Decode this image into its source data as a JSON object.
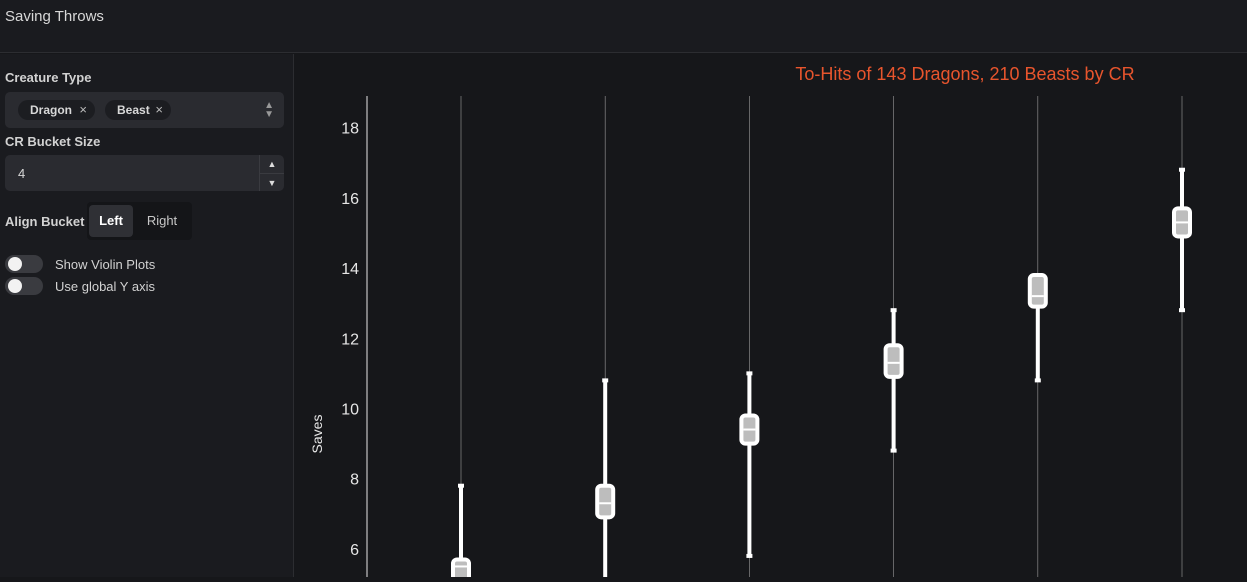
{
  "header": {
    "title": "Saving Throws"
  },
  "sidebar": {
    "creature_type_label": "Creature Type",
    "creature_types": [
      "Dragon",
      "Beast"
    ],
    "remove_glyph": "×",
    "bucket_size_label": "CR Bucket Size",
    "bucket_size_value": "4",
    "align_label": "Align Bucket",
    "align_options": [
      "Left",
      "Right"
    ],
    "align_selected": "Left",
    "toggles": [
      {
        "label": "Show Violin Plots",
        "on": false
      },
      {
        "label": "Use global Y axis",
        "on": false
      }
    ]
  },
  "colors": {
    "title": "#e8552d",
    "box_fill": "#bdbdbd",
    "whisker": "#ffffff"
  },
  "chart_data": {
    "type": "box",
    "title": "To-Hits of 143 Dragons, 210 Beasts by CR",
    "ylabel": "Saves",
    "ylim": [
      5.2,
      18.9
    ],
    "yticks": [
      6,
      8,
      10,
      12,
      14,
      16,
      18
    ],
    "series": [
      {
        "low": 4.0,
        "q1": 5.0,
        "median": 5.5,
        "q3": 5.7,
        "high": 7.8
      },
      {
        "low": 5.0,
        "q1": 6.9,
        "median": 7.3,
        "q3": 7.8,
        "high": 10.8
      },
      {
        "low": 5.8,
        "q1": 9.0,
        "median": 9.4,
        "q3": 9.8,
        "high": 11.0
      },
      {
        "low": 8.8,
        "q1": 10.9,
        "median": 11.3,
        "q3": 11.8,
        "high": 12.8
      },
      {
        "low": 10.8,
        "q1": 12.9,
        "median": 13.2,
        "q3": 13.8,
        "high": 13.8
      },
      {
        "low": 12.8,
        "q1": 14.9,
        "median": 15.3,
        "q3": 15.7,
        "high": 16.8
      }
    ]
  }
}
